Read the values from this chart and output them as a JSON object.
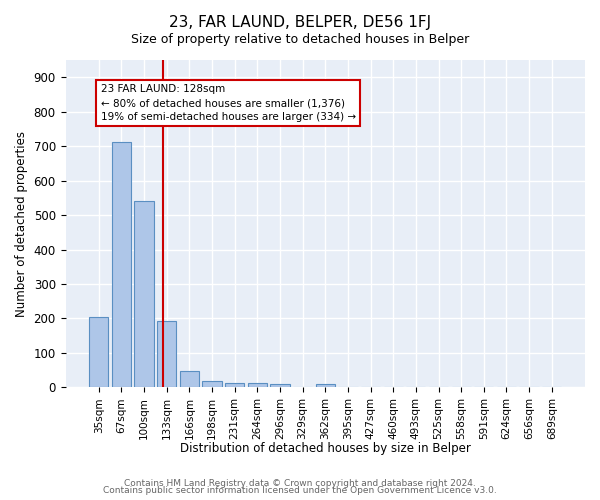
{
  "title": "23, FAR LAUND, BELPER, DE56 1FJ",
  "subtitle": "Size of property relative to detached houses in Belper",
  "xlabel": "Distribution of detached houses by size in Belper",
  "ylabel": "Number of detached properties",
  "bar_labels": [
    "35sqm",
    "67sqm",
    "100sqm",
    "133sqm",
    "166sqm",
    "198sqm",
    "231sqm",
    "264sqm",
    "296sqm",
    "329sqm",
    "362sqm",
    "395sqm",
    "427sqm",
    "460sqm",
    "493sqm",
    "525sqm",
    "558sqm",
    "591sqm",
    "624sqm",
    "656sqm",
    "689sqm"
  ],
  "bar_values": [
    203,
    712,
    540,
    192,
    48,
    18,
    14,
    13,
    11,
    0,
    10,
    0,
    0,
    0,
    0,
    0,
    0,
    0,
    0,
    0,
    0
  ],
  "bar_color": "#aec6e8",
  "bar_edge_color": "#5a8fc2",
  "background_color": "#e8eef7",
  "grid_color": "#ffffff",
  "property_line_label": "23 FAR LAUND: 128sqm",
  "annotation_line1": "← 80% of detached houses are smaller (1,376)",
  "annotation_line2": "19% of semi-detached houses are larger (334) →",
  "red_line_color": "#cc0000",
  "yticks": [
    0,
    100,
    200,
    300,
    400,
    500,
    600,
    700,
    800,
    900
  ],
  "ylim": [
    0,
    950
  ],
  "footnote1": "Contains HM Land Registry data © Crown copyright and database right 2024.",
  "footnote2": "Contains public sector information licensed under the Open Government Licence v3.0."
}
